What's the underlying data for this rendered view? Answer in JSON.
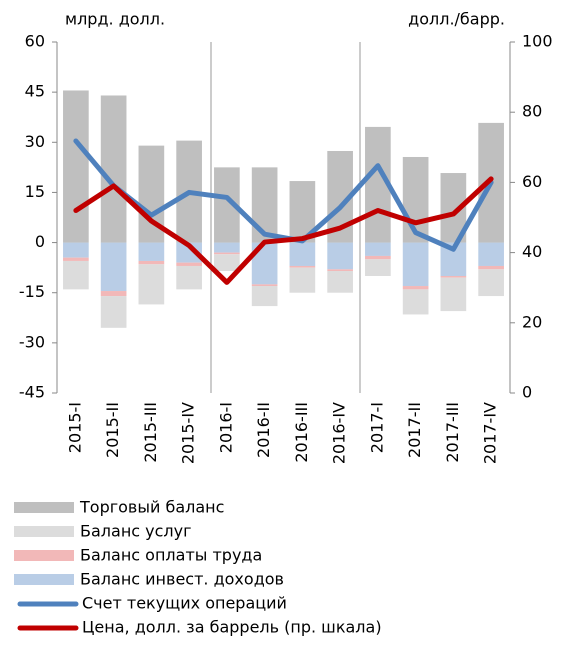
{
  "chart_data": {
    "type": "bar",
    "y_label": "млрд. долл.",
    "y2_label": "долл./барр.",
    "categories": [
      "2015-I",
      "2015-II",
      "2015-III",
      "2015-IV",
      "2016-I",
      "2016-II",
      "2016-III",
      "2016-IV",
      "2017-I",
      "2017-II",
      "2017-III",
      "2017-IV"
    ],
    "series": [
      {
        "name": "Торговый баланс",
        "type": "bar",
        "color": "#bfbfbf",
        "values": [
          45.5,
          44,
          29,
          30.5,
          22.5,
          22.5,
          18.4,
          27.4,
          34.6,
          25.6,
          20.8,
          35.8
        ]
      },
      {
        "name": "Баланс услуг",
        "type": "bar",
        "color": "#dcdcdc",
        "values": [
          -8.5,
          -9.5,
          -12,
          -7,
          -5,
          -6,
          -7.5,
          -6.5,
          -5,
          -7.5,
          -10,
          -8
        ]
      },
      {
        "name": "Баланс оплаты труда",
        "type": "bar",
        "color": "#f2b8b8",
        "values": [
          -1,
          -1.5,
          -1,
          -1,
          -0.5,
          -0.5,
          -0.5,
          -0.5,
          -1,
          -1,
          -0.5,
          -1
        ]
      },
      {
        "name": "Баланс инвест. доходов",
        "type": "bar",
        "color": "#b9cde6",
        "values": [
          -4.5,
          -14.5,
          -5.5,
          -6,
          -3,
          -12.5,
          -7,
          -8,
          -4,
          -13,
          -10,
          -7
        ]
      },
      {
        "name": "Счет текущих операций",
        "type": "line",
        "color": "#4f81bd",
        "values": [
          30.4,
          17,
          8.2,
          15,
          13.5,
          2.5,
          0.5,
          10.5,
          23,
          3,
          -2,
          18
        ]
      },
      {
        "name": "Цена, долл. за баррель (пр. шкала)",
        "type": "line",
        "axis": "y2",
        "color": "#c00000",
        "values": [
          52,
          59,
          49,
          42,
          31.5,
          43,
          44,
          47,
          52,
          48.5,
          51,
          61
        ]
      }
    ],
    "ylim": [
      -45,
      60
    ],
    "yticks": [
      60,
      45,
      30,
      15,
      0,
      -15,
      -30,
      -45
    ],
    "y2lim": [
      0,
      100
    ],
    "y2ticks": [
      100,
      80,
      60,
      40,
      20,
      0
    ]
  }
}
